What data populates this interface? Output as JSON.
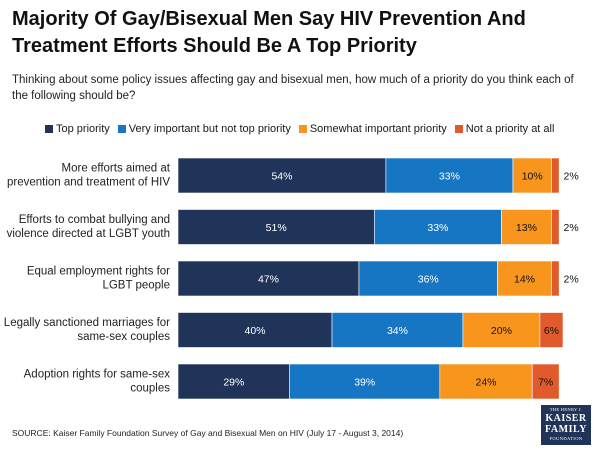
{
  "chart_data": {
    "type": "bar",
    "orientation": "horizontal",
    "stacked": true,
    "title": "Majority Of Gay/Bisexual Men Say HIV Prevention And Treatment Efforts Should Be A Top Priority",
    "subtitle": "Thinking about some policy issues affecting gay and bisexual men, how much of a priority do you think each of the following should be?",
    "categories": [
      [
        "More efforts aimed at",
        "prevention and treatment of HIV"
      ],
      [
        "Efforts to combat bullying and",
        "violence directed at LGBT youth"
      ],
      [
        "Equal employment rights for",
        "LGBT people"
      ],
      [
        "Legally sanctioned marriages for",
        "same-sex couples"
      ],
      [
        "Adoption rights for same-sex",
        "couples"
      ]
    ],
    "series": [
      {
        "name": "Top priority",
        "color": "#1f3458",
        "values": [
          54,
          51,
          47,
          40,
          29
        ]
      },
      {
        "name": "Very important but not top priority",
        "color": "#1776c4",
        "values": [
          33,
          33,
          36,
          34,
          39
        ]
      },
      {
        "name": "Somewhat important priority",
        "color": "#f7951d",
        "values": [
          10,
          13,
          14,
          20,
          24
        ]
      },
      {
        "name": "Not a priority at all",
        "color": "#e15a2c",
        "values": [
          2,
          2,
          2,
          6,
          7
        ]
      }
    ],
    "value_suffix": "%",
    "xlim": [
      0,
      100
    ],
    "legend_position": "top",
    "grid": false
  },
  "source": "SOURCE: Kaiser Family Foundation Survey of Gay and Bisexual Men on HIV (July 17 - August 3, 2014)",
  "logo": {
    "line1": "THE HENRY J.",
    "line2": "KAISER",
    "line3": "FAMILY",
    "line4": "FOUNDATION"
  }
}
